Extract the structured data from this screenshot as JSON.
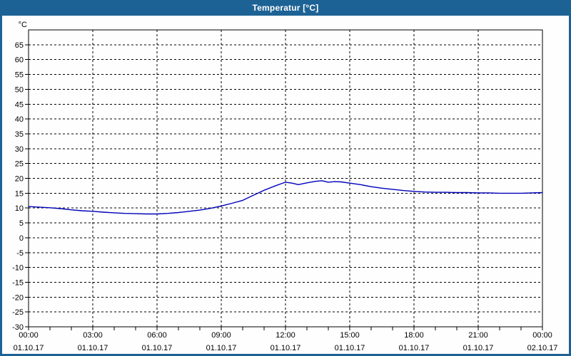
{
  "window": {
    "title": "Temperatur [°C]",
    "colors": {
      "title_bar": "#1d6295",
      "border": "#1d6295",
      "background": "#fdfefd",
      "title_text": "#ffffff"
    }
  },
  "chart_data": {
    "type": "line",
    "title": "Temperatur [°C]",
    "unit_label": "°C",
    "grid": {
      "style": "dashed",
      "color": "#000000",
      "h_every": 5,
      "v_every_hours": 3
    },
    "x_axis": {
      "range_hours": [
        0,
        24
      ],
      "minor_tick_hours": 1,
      "tick_labels": [
        {
          "h": 0,
          "time": "00:00",
          "date": "01.10.17"
        },
        {
          "h": 3,
          "time": "03:00",
          "date": "01.10.17"
        },
        {
          "h": 6,
          "time": "06:00",
          "date": "01.10.17"
        },
        {
          "h": 9,
          "time": "09:00",
          "date": "01.10.17"
        },
        {
          "h": 12,
          "time": "12:00",
          "date": "01.10.17"
        },
        {
          "h": 15,
          "time": "15:00",
          "date": "01.10.17"
        },
        {
          "h": 18,
          "time": "18:00",
          "date": "01.10.17"
        },
        {
          "h": 21,
          "time": "21:00",
          "date": "01.10.17"
        },
        {
          "h": 24,
          "time": "00:00",
          "date": "02.10.17"
        }
      ]
    },
    "y_axis": {
      "range": [
        -30,
        70
      ],
      "ticks": [
        65,
        60,
        55,
        50,
        45,
        40,
        35,
        30,
        25,
        20,
        15,
        10,
        5,
        0,
        -5,
        -10,
        -15,
        -20,
        -25,
        -30
      ]
    },
    "series": [
      {
        "name": "Temperatur",
        "color": "#0000bb",
        "points": [
          [
            0,
            10.5
          ],
          [
            0.5,
            10.3
          ],
          [
            1,
            10.1
          ],
          [
            1.5,
            9.8
          ],
          [
            2,
            9.4
          ],
          [
            2.5,
            9.1
          ],
          [
            3,
            8.9
          ],
          [
            3.5,
            8.6
          ],
          [
            4,
            8.4
          ],
          [
            4.5,
            8.2
          ],
          [
            5,
            8.1
          ],
          [
            5.5,
            8.0
          ],
          [
            6,
            8.0
          ],
          [
            6.5,
            8.2
          ],
          [
            7,
            8.5
          ],
          [
            7.5,
            8.9
          ],
          [
            8,
            9.3
          ],
          [
            8.5,
            9.9
          ],
          [
            9,
            10.7
          ],
          [
            9.5,
            11.6
          ],
          [
            10,
            12.6
          ],
          [
            10.5,
            14.3
          ],
          [
            11,
            16.0
          ],
          [
            11.5,
            17.4
          ],
          [
            11.8,
            18.2
          ],
          [
            12,
            18.7
          ],
          [
            12.3,
            18.4
          ],
          [
            12.6,
            17.9
          ],
          [
            13,
            18.5
          ],
          [
            13.4,
            19.0
          ],
          [
            13.7,
            19.2
          ],
          [
            14,
            18.7
          ],
          [
            14.3,
            18.9
          ],
          [
            14.6,
            18.8
          ],
          [
            15,
            18.4
          ],
          [
            15.5,
            17.9
          ],
          [
            16,
            17.2
          ],
          [
            16.5,
            16.7
          ],
          [
            17,
            16.3
          ],
          [
            17.5,
            15.9
          ],
          [
            18,
            15.6
          ],
          [
            18.5,
            15.4
          ],
          [
            19,
            15.3
          ],
          [
            19.5,
            15.3
          ],
          [
            20,
            15.2
          ],
          [
            20.5,
            15.2
          ],
          [
            21,
            15.1
          ],
          [
            21.5,
            15.1
          ],
          [
            22,
            15.0
          ],
          [
            22.5,
            15.0
          ],
          [
            23,
            15.0
          ],
          [
            23.5,
            15.1
          ],
          [
            24,
            15.2
          ]
        ]
      }
    ]
  }
}
